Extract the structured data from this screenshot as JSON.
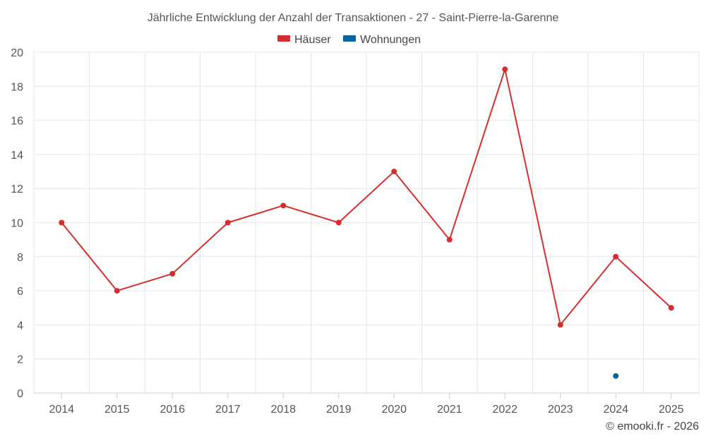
{
  "chart_data": {
    "type": "line",
    "title": "Jährliche Entwicklung der Anzahl der Transaktionen - 27 - Saint-Pierre-la-Garenne",
    "categories": [
      "2014",
      "2015",
      "2016",
      "2017",
      "2018",
      "2019",
      "2020",
      "2021",
      "2022",
      "2023",
      "2024",
      "2025"
    ],
    "series": [
      {
        "name": "Häuser",
        "color": "#d32f2f",
        "values": [
          10,
          6,
          7,
          10,
          11,
          10,
          13,
          9,
          19,
          4,
          8,
          5
        ]
      },
      {
        "name": "Wohnungen",
        "color": "#0a64a0",
        "values": [
          null,
          null,
          null,
          null,
          null,
          null,
          null,
          null,
          null,
          null,
          1,
          null
        ]
      }
    ],
    "ylim": [
      0,
      20
    ],
    "yticks": [
      0,
      2,
      4,
      6,
      8,
      10,
      12,
      14,
      16,
      18,
      20
    ],
    "xlabel": "",
    "ylabel": "",
    "grid": true,
    "legend_position": "top-center"
  },
  "credit": "© emooki.fr - 2026"
}
